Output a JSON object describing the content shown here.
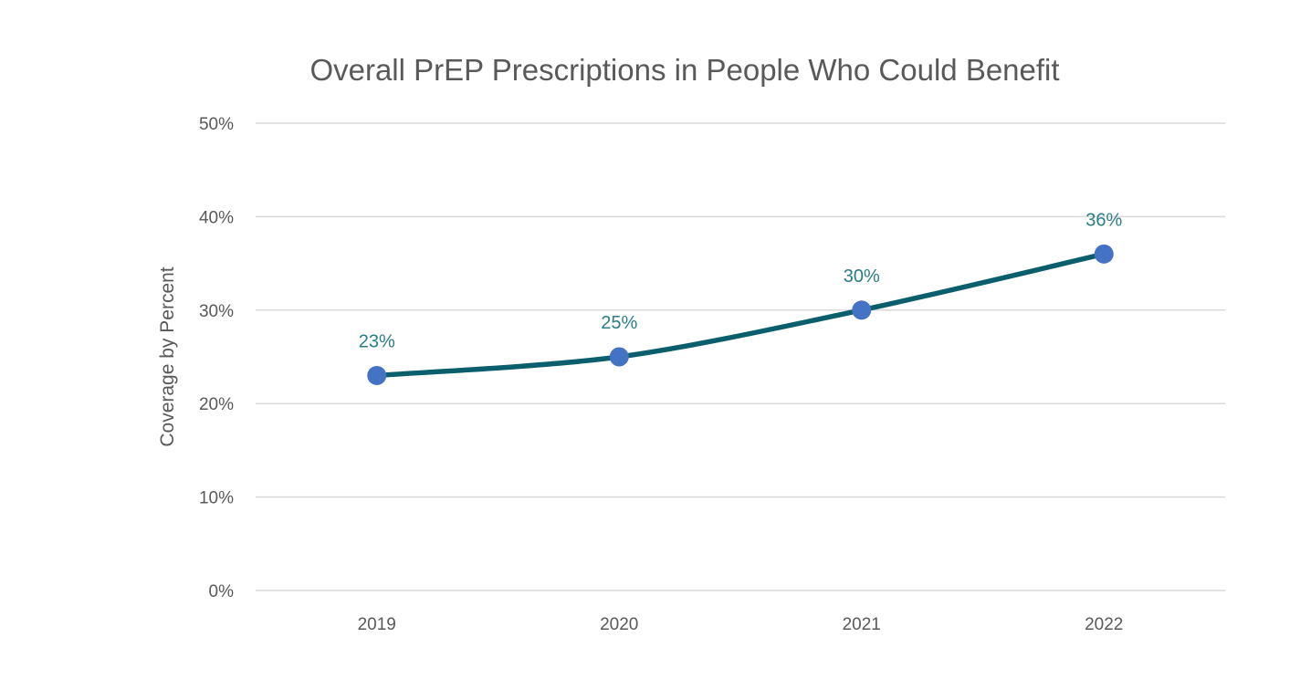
{
  "chart_data": {
    "type": "line",
    "title": "Overall PrEP Prescriptions in People Who Could Benefit",
    "xlabel": "",
    "ylabel": "Coverage by Percent",
    "categories": [
      "2019",
      "2020",
      "2021",
      "2022"
    ],
    "series": [
      {
        "name": "Coverage",
        "values": [
          23,
          25,
          30,
          36
        ],
        "data_labels": [
          "23%",
          "25%",
          "30%",
          "36%"
        ]
      }
    ],
    "ylim": [
      0,
      50
    ],
    "yticks": [
      0,
      10,
      20,
      30,
      40,
      50
    ],
    "ytick_labels": [
      "0%",
      "10%",
      "20%",
      "30%",
      "40%",
      "50%"
    ],
    "grid": true,
    "legend": "none",
    "colors": {
      "line": "#0b5e6b",
      "marker": "#4472c4",
      "label": "#2a7d87",
      "grid": "#d9d9d9"
    }
  }
}
